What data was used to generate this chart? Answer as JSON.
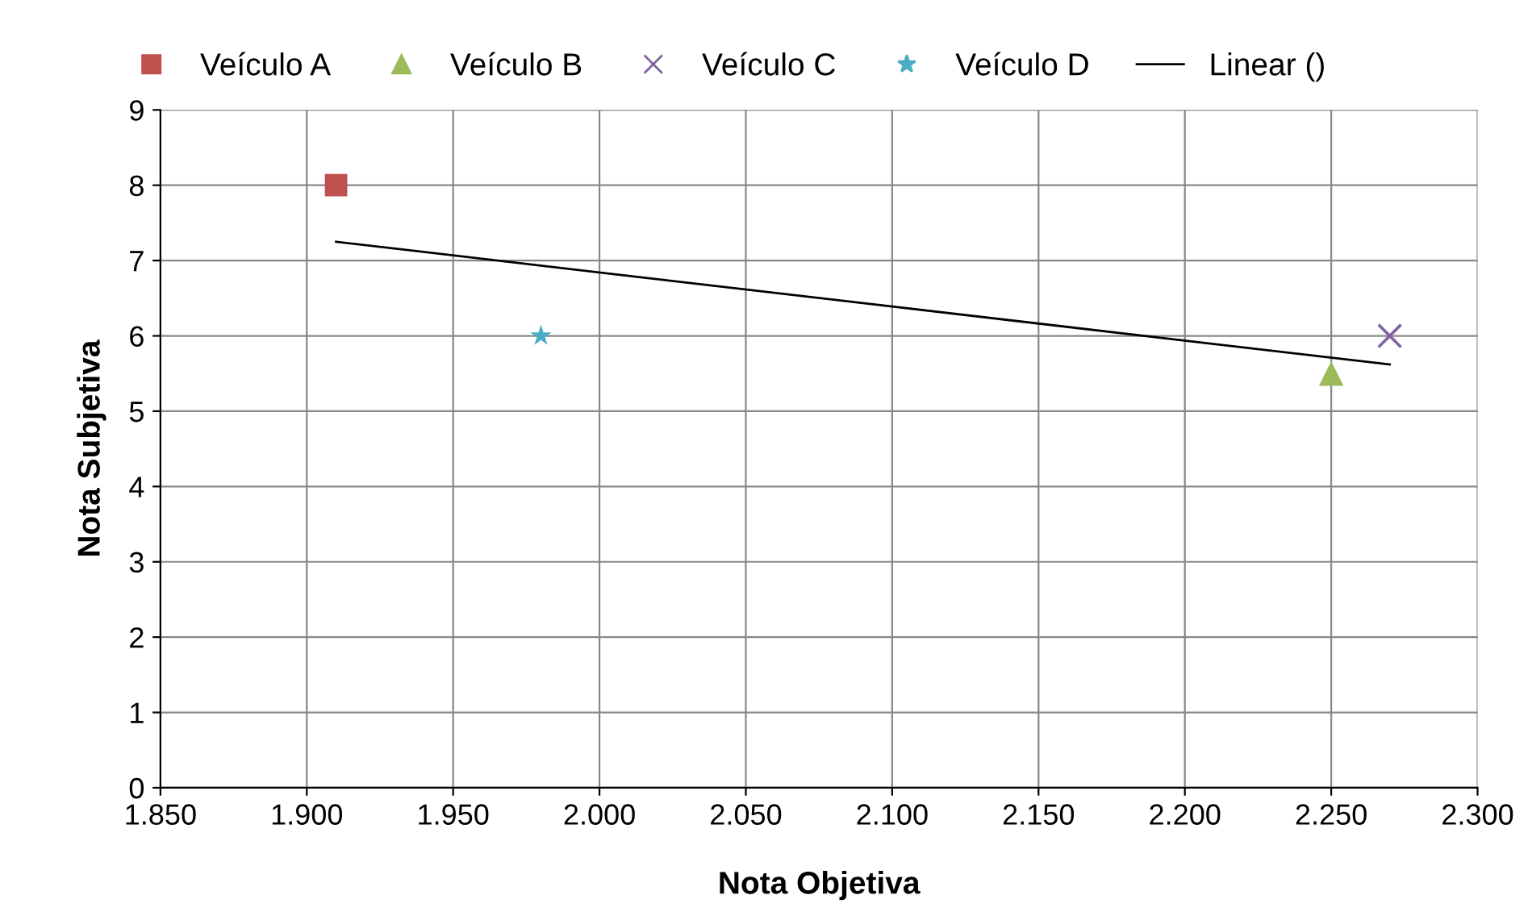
{
  "chart_data": {
    "type": "scatter",
    "xlabel": "Nota Objetiva",
    "ylabel": "Nota Subjetiva",
    "grid": true,
    "legend": "top",
    "xlim": [
      1850,
      2300
    ],
    "xticks": [
      {
        "value": 1850,
        "label": "1.850"
      },
      {
        "value": 1900,
        "label": "1.900"
      },
      {
        "value": 1950,
        "label": "1.950"
      },
      {
        "value": 2000,
        "label": "2.000"
      },
      {
        "value": 2050,
        "label": "2.050"
      },
      {
        "value": 2100,
        "label": "2.100"
      },
      {
        "value": 2150,
        "label": "2.150"
      },
      {
        "value": 2200,
        "label": "2.200"
      },
      {
        "value": 2250,
        "label": "2.250"
      },
      {
        "value": 2300,
        "label": "2.300"
      }
    ],
    "ylim": [
      0,
      9
    ],
    "yticks": [
      0,
      1,
      2,
      3,
      4,
      5,
      6,
      7,
      8,
      9
    ],
    "series": [
      {
        "name": "Veículo A",
        "color": "#c0504d",
        "marker": "square",
        "x": [
          1910
        ],
        "values": [
          8
        ]
      },
      {
        "name": "Veículo B",
        "color": "#9bbb59",
        "marker": "triangle",
        "x": [
          2250
        ],
        "values": [
          5.5
        ]
      },
      {
        "name": "Veículo C",
        "color": "#8064a2",
        "marker": "cross",
        "x": [
          2270
        ],
        "values": [
          6
        ]
      },
      {
        "name": "Veículo D",
        "color": "#4bacc6",
        "marker": "star",
        "x": [
          1980
        ],
        "values": [
          6
        ]
      },
      {
        "name": "Linear ()",
        "type": "line",
        "color": "#000000",
        "marker": "none",
        "line_style": "solid",
        "x": [
          1910,
          2270
        ],
        "values": [
          7.25,
          5.62
        ]
      }
    ]
  }
}
